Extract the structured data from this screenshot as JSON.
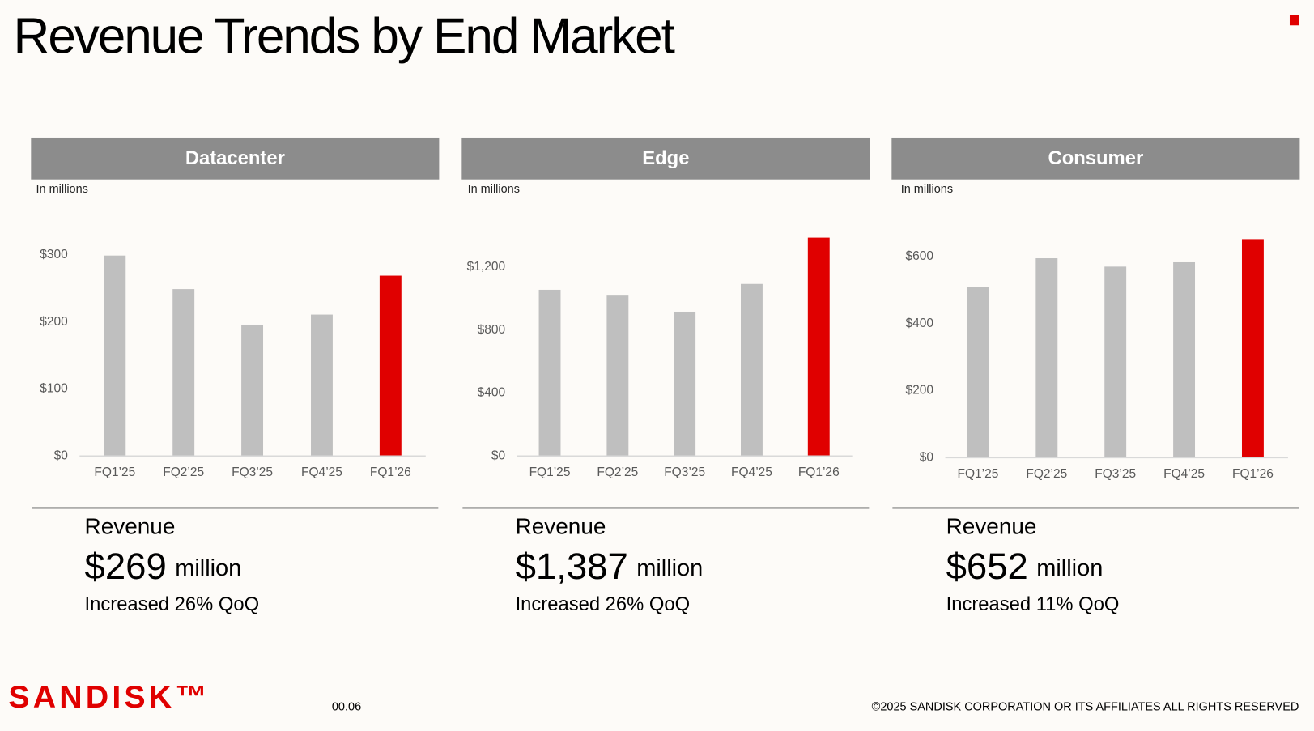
{
  "title": "Revenue Trends by End Market",
  "chart_data": [
    {
      "type": "bar",
      "title": "Datacenter",
      "subtitle": "In millions",
      "categories": [
        "FQ1’25",
        "FQ2’25",
        "FQ3’25",
        "FQ4’25",
        "FQ1’26"
      ],
      "values": [
        299,
        249,
        196,
        211,
        269
      ],
      "colors": [
        "#bfbfbf",
        "#bfbfbf",
        "#bfbfbf",
        "#bfbfbf",
        "#e00000"
      ],
      "ylim": [
        0,
        300
      ],
      "yticks": [
        {
          "value": 0,
          "label": "$0"
        },
        {
          "value": 100,
          "label": "$100"
        },
        {
          "value": 200,
          "label": "$200"
        },
        {
          "value": 300,
          "label": "$300"
        }
      ]
    },
    {
      "type": "bar",
      "title": "Edge",
      "subtitle": "In millions",
      "categories": [
        "FQ1’25",
        "FQ2’25",
        "FQ3’25",
        "FQ4’25",
        "FQ1’26"
      ],
      "values": [
        1056,
        1019,
        917,
        1093,
        1387
      ],
      "colors": [
        "#bfbfbf",
        "#bfbfbf",
        "#bfbfbf",
        "#bfbfbf",
        "#e00000"
      ],
      "ylim": [
        0,
        1400
      ],
      "yticks": [
        {
          "value": 0,
          "label": "$0"
        },
        {
          "value": 400,
          "label": "$400"
        },
        {
          "value": 800,
          "label": "$800"
        },
        {
          "value": 1200,
          "label": "$1,200"
        }
      ]
    },
    {
      "type": "bar",
      "title": "Consumer",
      "subtitle": "In millions",
      "categories": [
        "FQ1’25",
        "FQ2’25",
        "FQ3’25",
        "FQ4’25",
        "FQ1’26"
      ],
      "values": [
        510,
        595,
        570,
        583,
        652
      ],
      "colors": [
        "#bfbfbf",
        "#bfbfbf",
        "#bfbfbf",
        "#bfbfbf",
        "#e00000"
      ],
      "ylim": [
        0,
        650
      ],
      "yticks": [
        {
          "value": 0,
          "label": "$0"
        },
        {
          "value": 200,
          "label": "$200"
        },
        {
          "value": 400,
          "label": "$400"
        },
        {
          "value": 600,
          "label": "$600"
        }
      ]
    }
  ],
  "summaries": [
    {
      "label": "Revenue",
      "amount": "$269",
      "unit": "million",
      "change": "Increased 26% QoQ"
    },
    {
      "label": "Revenue",
      "amount": "$1,387",
      "unit": "million",
      "change": "Increased 26% QoQ"
    },
    {
      "label": "Revenue",
      "amount": "$652",
      "unit": "million",
      "change": "Increased 11% QoQ"
    }
  ],
  "footer": {
    "logo": "SANDISK™",
    "page": "00.06",
    "copyright": "©2025 SANDISK CORPORATION OR ITS AFFILIATES ALL RIGHTS RESERVED"
  }
}
